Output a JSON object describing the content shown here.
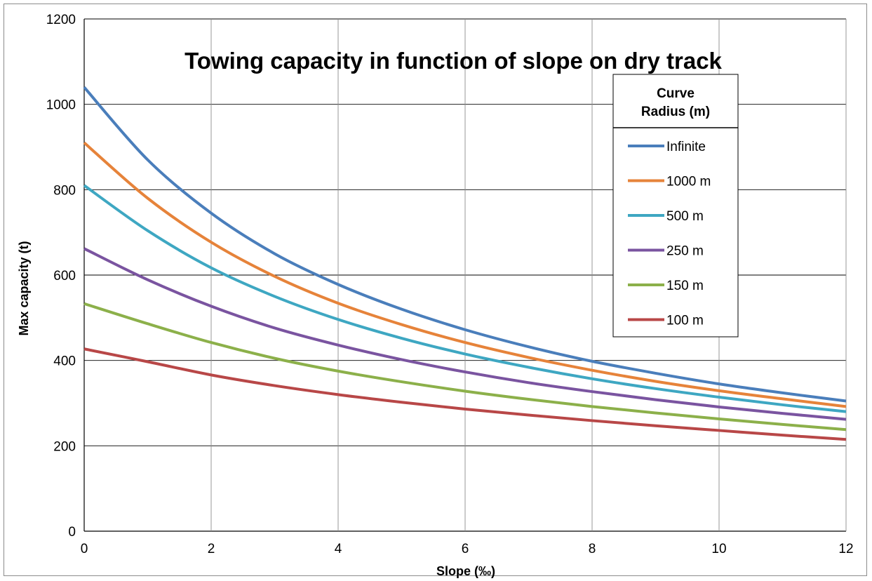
{
  "chart_data": {
    "type": "line",
    "title": "Towing capacity  in function of slope on dry track",
    "xlabel": "Slope (‰)",
    "ylabel": "Max capacity (t)",
    "xlim": [
      0,
      12
    ],
    "ylim": [
      0,
      1200
    ],
    "xticks": [
      0,
      2,
      4,
      6,
      8,
      10,
      12
    ],
    "yticks": [
      0,
      200,
      400,
      600,
      800,
      1000,
      1200
    ],
    "grid": true,
    "legend": {
      "title_lines": [
        "Curve",
        "Radius (m)"
      ],
      "placement": "top-right"
    },
    "x": [
      0,
      1,
      2,
      3,
      4,
      5,
      6,
      7,
      8,
      9,
      10,
      11,
      12
    ],
    "series": [
      {
        "name": "Infinite",
        "color": "#4a7ebb",
        "values": [
          1040,
          870,
          745,
          650,
          578,
          520,
          472,
          432,
          398,
          370,
          345,
          324,
          305
        ]
      },
      {
        "name": "1000 m",
        "color": "#e6833a",
        "values": [
          910,
          780,
          677,
          597,
          534,
          484,
          442,
          407,
          377,
          351,
          329,
          310,
          292
        ]
      },
      {
        "name": "500 m",
        "color": "#3ea7c2",
        "values": [
          810,
          704,
          617,
          550,
          496,
          452,
          415,
          384,
          357,
          334,
          314,
          296,
          280
        ]
      },
      {
        "name": "250 m",
        "color": "#7a54a0",
        "values": [
          662,
          589,
          527,
          476,
          436,
          402,
          373,
          348,
          327,
          308,
          291,
          276,
          262
        ]
      },
      {
        "name": "150 m",
        "color": "#8cb04a",
        "values": [
          533,
          486,
          442,
          405,
          375,
          350,
          328,
          309,
          292,
          277,
          263,
          250,
          238
        ]
      },
      {
        "name": "100 m",
        "color": "#b84747",
        "values": [
          427,
          397,
          366,
          341,
          320,
          302,
          286,
          272,
          259,
          247,
          236,
          225,
          215
        ]
      }
    ]
  }
}
